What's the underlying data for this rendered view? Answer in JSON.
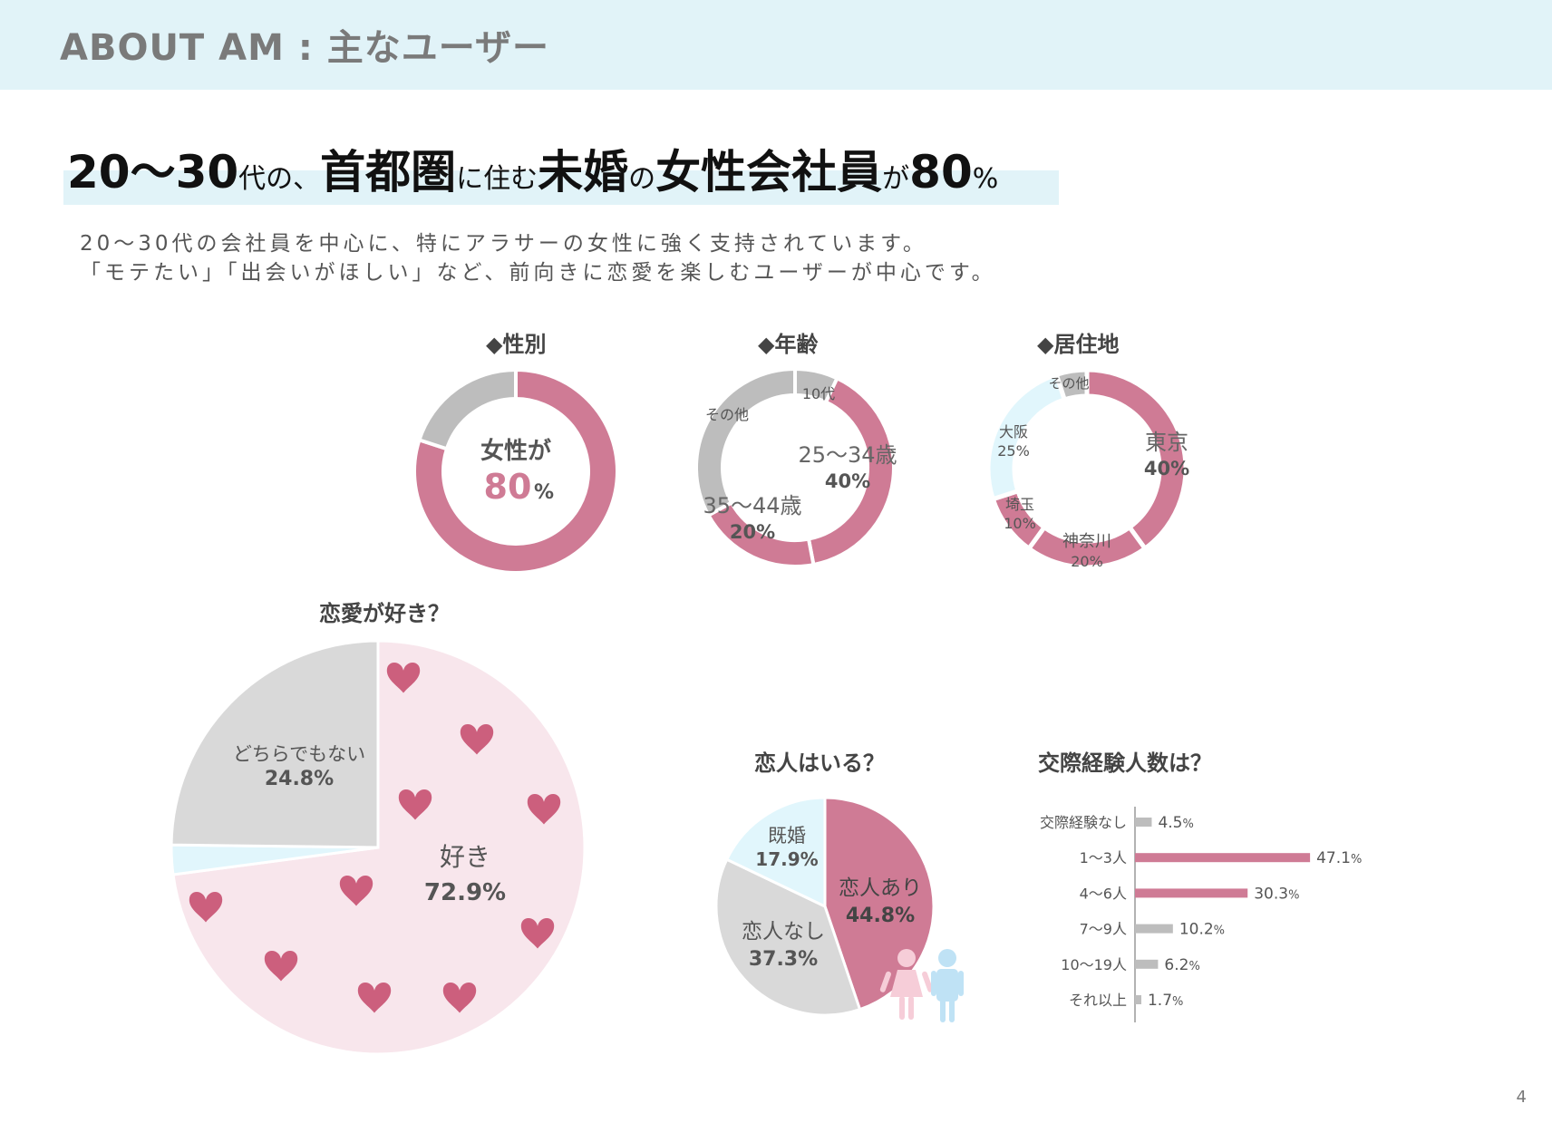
{
  "header": {
    "title": "ABOUT AM : 主なユーザー"
  },
  "headline": {
    "parts": [
      {
        "text": "20～30",
        "cls": "big"
      },
      {
        "text": "代の、",
        "cls": "sm"
      },
      {
        "text": "首都圏",
        "cls": "big"
      },
      {
        "text": "に住む",
        "cls": "sm"
      },
      {
        "text": "未婚",
        "cls": "big"
      },
      {
        "text": "の",
        "cls": "sm"
      },
      {
        "text": "女性会社員",
        "cls": "big"
      },
      {
        "text": "が",
        "cls": "sm"
      },
      {
        "text": "80",
        "cls": "big"
      },
      {
        "text": "%",
        "cls": "sm"
      }
    ]
  },
  "description": {
    "line1": "20～30代の会社員を中心に、特にアラサーの女性に強く支持されています。",
    "line2": "「モテたい」「出会いがほしい」など、前向きに恋愛を楽しむユーザーが中心です。"
  },
  "colors": {
    "pink": "#cf7b95",
    "gray": "#bdbdbd",
    "lightgray": "#d9d9d9",
    "lightblue": "#e1f6fc",
    "palepink": "#f8e6ec",
    "heart": "#cc5f7d"
  },
  "chart_data": [
    {
      "type": "pie",
      "id": "gender",
      "title": "◆性別",
      "donut": true,
      "slices": [
        {
          "label": "女性",
          "value": 80,
          "color": "#cf7b95"
        },
        {
          "label": "",
          "value": 20,
          "color": "#bdbdbd"
        }
      ],
      "center": {
        "line1": "女性が",
        "value": "80",
        "unit": "%"
      }
    },
    {
      "type": "pie",
      "id": "age",
      "title": "◆年齢",
      "donut": true,
      "slices": [
        {
          "label": "10代",
          "value": 7,
          "color": "#bdbdbd"
        },
        {
          "label": "25～34歳",
          "pct": "40%",
          "value": 40,
          "color": "#cf7b95"
        },
        {
          "label": "35～44歳",
          "pct": "20%",
          "value": 20,
          "color": "#cf7b95"
        },
        {
          "label": "その他",
          "value": 33,
          "color": "#bdbdbd"
        }
      ]
    },
    {
      "type": "pie",
      "id": "residence",
      "title": "◆居住地",
      "donut": true,
      "slices": [
        {
          "label": "東京",
          "pct": "40%",
          "value": 40,
          "color": "#cf7b95"
        },
        {
          "label": "神奈川",
          "pct": "20%",
          "value": 20,
          "color": "#cf7b95"
        },
        {
          "label": "埼玉",
          "pct": "10%",
          "value": 10,
          "color": "#cf7b95"
        },
        {
          "label": "大阪",
          "pct": "25%",
          "value": 25,
          "color": "#e1f6fc"
        },
        {
          "label": "その他",
          "value": 5,
          "color": "#bdbdbd"
        }
      ]
    },
    {
      "type": "pie",
      "id": "love",
      "title": "恋愛が好き？",
      "slices": [
        {
          "label": "好き",
          "pct": "72.9",
          "unit": "%",
          "value": 72.9,
          "color": "#f8e6ec"
        },
        {
          "label": "",
          "value": 2.3,
          "color": "#e1f6fc"
        },
        {
          "label": "どちらでもない",
          "pct": "24.8",
          "unit": "%",
          "value": 24.8,
          "color": "#d9d9d9"
        }
      ]
    },
    {
      "type": "pie",
      "id": "partner",
      "title": "恋人はいる？",
      "slices": [
        {
          "label": "恋人あり",
          "pct": "44.8",
          "unit": "%",
          "value": 44.8,
          "color": "#cf7b95"
        },
        {
          "label": "恋人なし",
          "pct": "37.3",
          "unit": "%",
          "value": 37.3,
          "color": "#d9d9d9"
        },
        {
          "label": "既婚",
          "pct": "17.9",
          "unit": "%",
          "value": 17.9,
          "color": "#e1f6fc"
        }
      ]
    },
    {
      "type": "bar",
      "id": "experience",
      "title": "交際経験人数は？",
      "orientation": "horizontal",
      "categories": [
        "交際経験なし",
        "1～3人",
        "4～6人",
        "7～9人",
        "10～19人",
        "それ以上"
      ],
      "values": [
        4.5,
        47.1,
        30.3,
        10.2,
        6.2,
        1.7
      ],
      "labels": [
        "4.5",
        "47.1",
        "30.3",
        "10.2",
        "6.2",
        "1.7"
      ],
      "unit": "%",
      "colors": [
        "#bdbdbd",
        "#cf7b95",
        "#cf7b95",
        "#bdbdbd",
        "#bdbdbd",
        "#bdbdbd"
      ]
    }
  ],
  "page_number": "4"
}
